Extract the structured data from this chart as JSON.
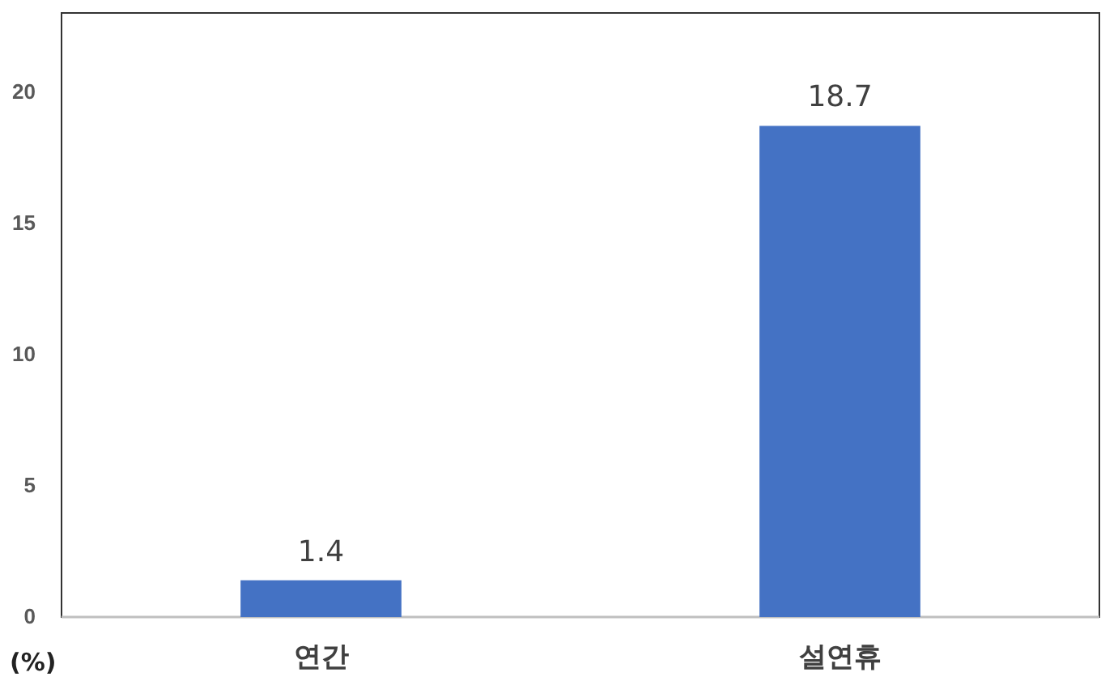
{
  "chart_data": {
    "type": "bar",
    "ylabel": "(%)",
    "categories": [
      "연간",
      "설연휴"
    ],
    "values": [
      1.4,
      18.7
    ],
    "color": "#4472c4",
    "ylim": [
      0,
      23
    ],
    "yticks": [
      0,
      5,
      10,
      15,
      20
    ],
    "grid": false,
    "data_labels": true
  }
}
